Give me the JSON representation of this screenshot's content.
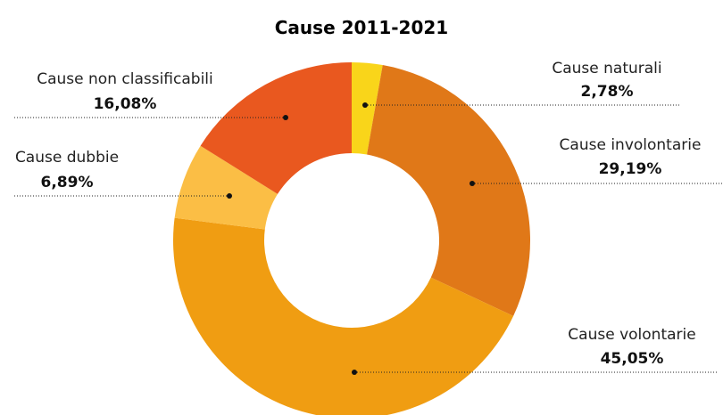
{
  "chart_data": {
    "type": "pie",
    "title": "Cause 2011-2021",
    "categories": [
      "Cause naturali",
      "Cause involontarie",
      "Cause volontarie",
      "Cause dubbie",
      "Cause non classificabili"
    ],
    "values": [
      2.78,
      29.19,
      45.05,
      6.89,
      16.08
    ],
    "value_labels": [
      "2,78%",
      "29,19%",
      "45,05%",
      "6,89%",
      "16,08%"
    ],
    "colors": [
      "#F9D51A",
      "#E07818",
      "#F09D12",
      "#FBBE45",
      "#E9581F"
    ],
    "donut": true,
    "legend": "none"
  }
}
